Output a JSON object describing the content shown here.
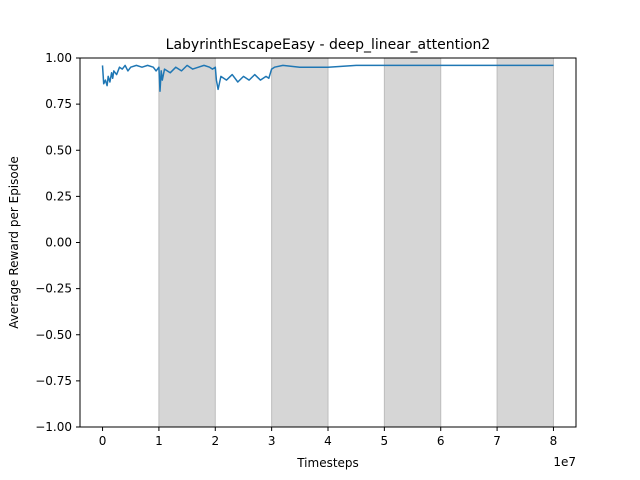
{
  "chart_data": {
    "type": "line",
    "title": "LabyrinthEscapeEasy - deep_linear_attention2",
    "xlabel": "Timesteps",
    "ylabel": "Average Reward per Episode",
    "x_scale_label": "1e7",
    "xlim": [
      -0.4,
      8.4
    ],
    "ylim": [
      -1.0,
      1.0
    ],
    "x_ticks": [
      0,
      1,
      2,
      3,
      4,
      5,
      6,
      7,
      8
    ],
    "y_ticks": [
      1.0,
      0.75,
      0.5,
      0.25,
      0.0,
      -0.25,
      -0.5,
      -0.75,
      -1.0
    ],
    "y_tick_labels": [
      "1.00",
      "0.75",
      "0.50",
      "0.25",
      "0.00",
      "−0.25",
      "−0.50",
      "−0.75",
      "−1.00"
    ],
    "grid": false,
    "legend": "none",
    "shaded_regions": [
      [
        1,
        2
      ],
      [
        3,
        4
      ],
      [
        5,
        6
      ],
      [
        7,
        8
      ]
    ],
    "shade_color": "#d6d6d6",
    "series": [
      {
        "color": "#1f77b4",
        "x": [
          0,
          0.02,
          0.05,
          0.08,
          0.1,
          0.13,
          0.16,
          0.18,
          0.2,
          0.25,
          0.3,
          0.35,
          0.4,
          0.45,
          0.5,
          0.6,
          0.7,
          0.8,
          0.9,
          0.95,
          1.0,
          1.02,
          1.04,
          1.06,
          1.1,
          1.2,
          1.3,
          1.4,
          1.5,
          1.6,
          1.7,
          1.8,
          1.9,
          1.95,
          2.0,
          2.02,
          2.05,
          2.1,
          2.2,
          2.3,
          2.4,
          2.5,
          2.6,
          2.7,
          2.8,
          2.9,
          2.95,
          3.0,
          3.05,
          3.2,
          3.5,
          4.0,
          4.5,
          5.0,
          5.5,
          6.0,
          6.5,
          7.0,
          7.5,
          8.0
        ],
        "y": [
          0.96,
          0.86,
          0.88,
          0.85,
          0.9,
          0.87,
          0.92,
          0.89,
          0.93,
          0.91,
          0.95,
          0.94,
          0.96,
          0.93,
          0.95,
          0.96,
          0.95,
          0.96,
          0.95,
          0.93,
          0.95,
          0.82,
          0.93,
          0.88,
          0.94,
          0.92,
          0.95,
          0.93,
          0.96,
          0.94,
          0.95,
          0.96,
          0.95,
          0.94,
          0.95,
          0.88,
          0.83,
          0.9,
          0.88,
          0.91,
          0.87,
          0.9,
          0.88,
          0.91,
          0.88,
          0.9,
          0.89,
          0.94,
          0.95,
          0.96,
          0.95,
          0.95,
          0.96,
          0.96,
          0.96,
          0.96,
          0.96,
          0.96,
          0.96,
          0.96
        ]
      }
    ]
  }
}
